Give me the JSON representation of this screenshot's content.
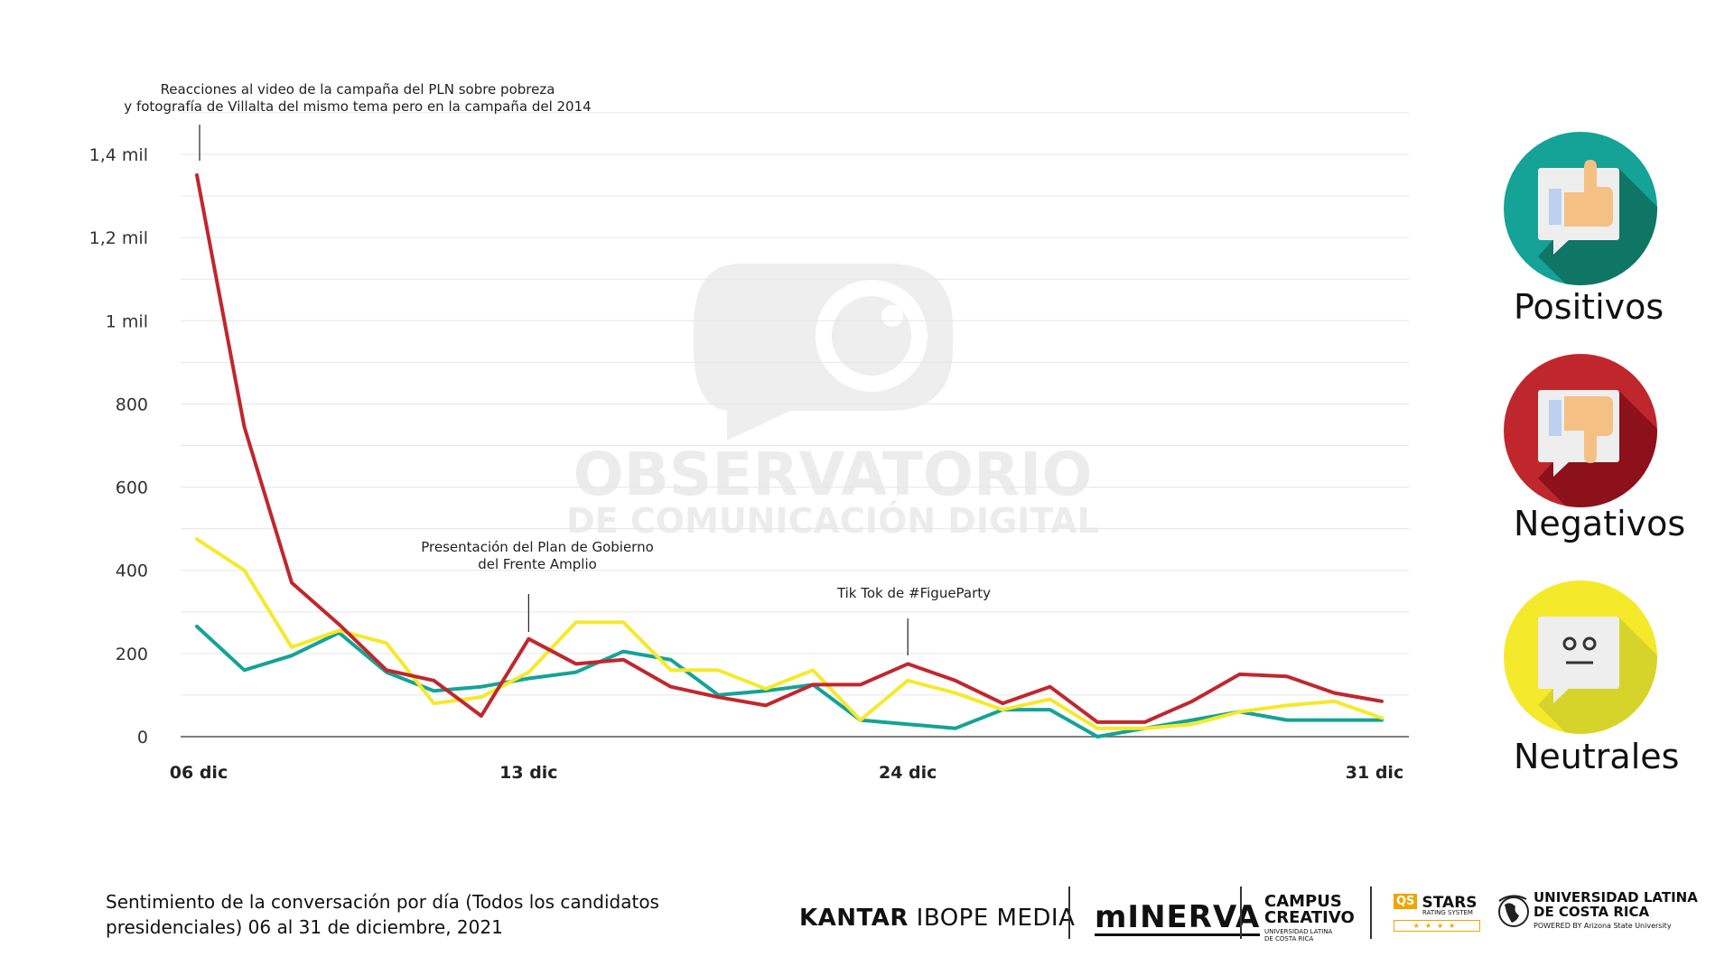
{
  "chart_data": {
    "type": "line",
    "title": "",
    "xlabel": "",
    "ylabel": "",
    "ylim": [
      0,
      1400
    ],
    "y_ticks": [
      {
        "value": 0,
        "label": "0"
      },
      {
        "value": 200,
        "label": "200"
      },
      {
        "value": 400,
        "label": "400"
      },
      {
        "value": 600,
        "label": "600"
      },
      {
        "value": 800,
        "label": "800"
      },
      {
        "value": 1000,
        "label": "1 mil"
      },
      {
        "value": 1200,
        "label": "1,2 mil"
      },
      {
        "value": 1400,
        "label": "1,4 mil"
      }
    ],
    "x_ticks": [
      {
        "index": 0,
        "label": "06 dic"
      },
      {
        "index": 7,
        "label": "13 dic"
      },
      {
        "index": 15,
        "label": "24 dic"
      },
      {
        "index": 25,
        "label": "31 dic"
      }
    ],
    "grid": true,
    "series": [
      {
        "key": "negativos",
        "color": "#c0272d",
        "values": [
          1350,
          745,
          370,
          270,
          160,
          135,
          50,
          235,
          175,
          185,
          120,
          95,
          75,
          125,
          125,
          175,
          135,
          80,
          120,
          35,
          35,
          85,
          150,
          145,
          105,
          85
        ]
      },
      {
        "key": "neutrales",
        "color": "#f5e92c",
        "values": [
          475,
          400,
          215,
          255,
          225,
          80,
          95,
          155,
          275,
          275,
          160,
          160,
          115,
          160,
          40,
          135,
          105,
          65,
          90,
          20,
          20,
          30,
          60,
          75,
          85,
          45
        ]
      },
      {
        "key": "positivos",
        "color": "#14a396",
        "values": [
          265,
          160,
          195,
          250,
          155,
          110,
          120,
          140,
          155,
          205,
          185,
          100,
          110,
          125,
          40,
          30,
          20,
          65,
          65,
          0,
          20,
          40,
          60,
          40,
          40,
          40
        ]
      }
    ],
    "annotations": [
      {
        "index": 0,
        "lines": [
          "Reacciones al video de la campaña del PLN sobre pobreza",
          "y fotografía de Villalta del mismo tema pero en la campaña del 2014"
        ]
      },
      {
        "index": 7,
        "lines": [
          "Presentación del Plan de Gobierno",
          "del Frente Amplio"
        ]
      },
      {
        "index": 15,
        "lines": [
          "Tik Tok de #FigueParty"
        ]
      }
    ],
    "legend": {
      "placement": "right",
      "items": [
        {
          "label": "Positivos",
          "color": "#14a396",
          "icon": "thumbs-up-icon"
        },
        {
          "label": "Negativos",
          "color": "#c0272d",
          "icon": "thumbs-down-icon"
        },
        {
          "label": "Neutrales",
          "color": "#f5e92c",
          "icon": "neutral-face-icon"
        }
      ]
    }
  },
  "watermark": {
    "line1": "OBSERVATORIO",
    "line2": "DE COMUNICACIÓN DIGITAL"
  },
  "caption": {
    "line1": "Sentimiento de la conversación por día (Todos los candidatos",
    "line2": "presidenciales) 06 al 31 de diciembre, 2021"
  },
  "logos": {
    "kantar": "KANTAR",
    "ibope": "IBOPE MEDIA",
    "minerva": "mINERVA",
    "campus1": "CAMPUS",
    "campus2": "CREATIVO",
    "campus3": "UNIVERSIDAD LATINA",
    "campus4": "DE COSTA RICA",
    "qs": "QS",
    "stars": "STARS",
    "stars_sub": "RATING SYSTEM",
    "ulatina1": "UNIVERSIDAD LATINA",
    "ulatina2": "DE COSTA RICA",
    "ulatina3": "POWERED BY Arizona State University"
  }
}
